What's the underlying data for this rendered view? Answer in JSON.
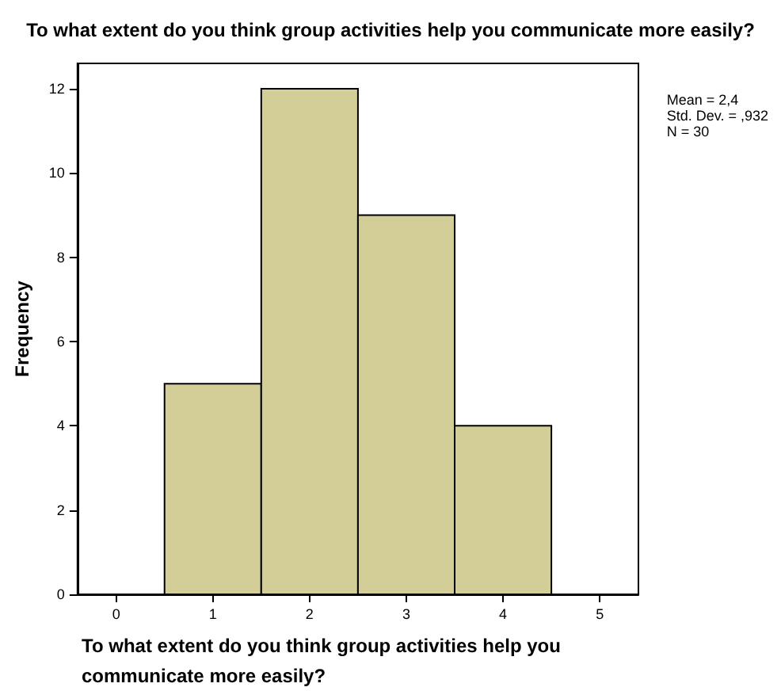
{
  "chart_data": {
    "type": "histogram",
    "title": "To what extent do you think group activities help you communicate more easily?",
    "xlabel": "To what extent do you think group activities help you communicate more easily?",
    "ylabel": "Frequency",
    "bins": [
      0.5,
      1.5,
      2.5,
      3.5,
      4.5
    ],
    "values": [
      5,
      12,
      9,
      4
    ],
    "color": "#d3ce97",
    "xlim": [
      -0.4,
      5.4
    ],
    "xticks": [
      0,
      1,
      2,
      3,
      4,
      5
    ],
    "ylim": [
      0,
      12.6
    ],
    "yticks": [
      0,
      2,
      4,
      6,
      8,
      10,
      12
    ],
    "grid": false,
    "annotations": [
      "Mean = 2,4",
      "Std. Dev. = ,932",
      "N = 30"
    ]
  }
}
